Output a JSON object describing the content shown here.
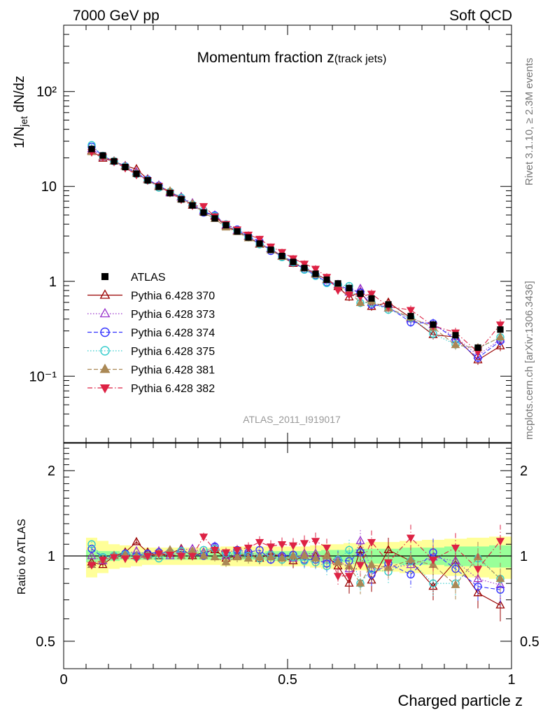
{
  "header": {
    "left": "7000 GeV pp",
    "right": "Soft QCD"
  },
  "title_main": "Momentum fraction ",
  "title_var": "z",
  "title_sub": "(track jets)",
  "analysis_label": "ATLAS_2011_I919017",
  "side_top": "Rivet 3.1.10, ≥ 2.3M events",
  "side_bottom": "mcplots.cern.ch [arXiv:1306.3436]",
  "y_label_main": {
    "pre": "1/N",
    "sub": "jet",
    "post": " dN/dz"
  },
  "y_label_ratio": "Ratio to ATLAS",
  "x_label": "Charged particle z",
  "colors": {
    "data": "#000000",
    "band_outer": "#ffff99",
    "band_inner": "#99ff99"
  },
  "chart_data": [
    {
      "type": "line",
      "panel": "main",
      "yscale": "log",
      "ylim": [
        0.02,
        500
      ],
      "xlim": [
        0,
        1
      ],
      "ytick_labels": [
        "10⁻¹",
        "1",
        "10",
        "10²"
      ],
      "yticks": [
        0.1,
        1,
        10,
        100
      ],
      "xticks": [
        0,
        0.5,
        1
      ],
      "xtick_labels": [
        "0",
        "0.5",
        "1"
      ],
      "legend_position": "lower-left",
      "x": [
        0.0625,
        0.0875,
        0.1125,
        0.1375,
        0.1625,
        0.1875,
        0.2125,
        0.2375,
        0.2625,
        0.2875,
        0.3125,
        0.3375,
        0.3625,
        0.3875,
        0.4125,
        0.4375,
        0.4625,
        0.4875,
        0.5125,
        0.5375,
        0.5625,
        0.5875,
        0.6125,
        0.6375,
        0.6625,
        0.6875,
        0.725,
        0.775,
        0.825,
        0.875,
        0.925,
        0.975
      ],
      "data_points": [
        24.8,
        21.2,
        18.4,
        16.0,
        13.6,
        11.6,
        9.9,
        8.5,
        7.3,
        6.3,
        5.3,
        4.6,
        3.9,
        3.35,
        2.9,
        2.5,
        2.15,
        1.85,
        1.6,
        1.38,
        1.2,
        1.04,
        0.95,
        0.85,
        0.74,
        0.66,
        0.57,
        0.43,
        0.35,
        0.27,
        0.2,
        0.31
      ],
      "series": [
        {
          "name": "ATLAS",
          "color": "#000000",
          "marker": "square-filled",
          "dash": "none"
        },
        {
          "name": "Pythia 6.428 370",
          "color": "#990000",
          "marker": "triangle-up-open",
          "dash": "solid",
          "ratio": [
            0.95,
            0.93,
            1.0,
            1.03,
            1.12,
            1.03,
            1.0,
            1.02,
            1.06,
            1.0,
            1.03,
            1.05,
            0.98,
            1.0,
            1.02,
            0.98,
            1.02,
            0.99,
            0.96,
            1.0,
            1.0,
            1.0,
            0.92,
            0.8,
            1.05,
            0.82,
            1.05,
            0.96,
            0.78,
            0.96,
            0.74,
            0.67
          ]
        },
        {
          "name": "Pythia 6.428 373",
          "color": "#9933cc",
          "marker": "triangle-up-open",
          "dash": "dotted",
          "ratio": [
            1.0,
            0.96,
            1.0,
            1.02,
            1.04,
            1.01,
            1.04,
            1.0,
            1.05,
            1.06,
            1.03,
            1.08,
            1.0,
            1.02,
            1.03,
            1.0,
            1.03,
            1.0,
            0.98,
            1.02,
            1.02,
            0.98,
            0.97,
            0.9,
            1.13,
            0.9,
            0.91,
            0.93,
            0.99,
            0.96,
            0.83,
            0.79
          ]
        },
        {
          "name": "Pythia 6.428 374",
          "color": "#3333ff",
          "marker": "circle-open",
          "dash": "dashed",
          "ratio": [
            1.06,
            0.99,
            1.0,
            1.02,
            1.0,
            1.02,
            1.03,
            1.03,
            1.04,
            1.02,
            1.0,
            1.08,
            1.02,
            1.05,
            1.03,
            1.05,
            0.97,
            1.0,
            1.01,
            0.97,
            0.97,
            0.94,
            0.97,
            0.96,
            1.03,
            0.86,
            0.94,
            0.86,
            1.03,
            0.9,
            0.78,
            0.76
          ]
        },
        {
          "name": "Pythia 6.428 375",
          "color": "#33cccc",
          "marker": "circle-open",
          "dash": "dotted",
          "ratio": [
            1.1,
            0.99,
            1.0,
            1.01,
            0.99,
            1.0,
            0.98,
            1.03,
            1.04,
            1.02,
            1.05,
            1.06,
            1.02,
            1.03,
            1.0,
            0.98,
            1.01,
            0.97,
            0.99,
            0.96,
            0.95,
            0.92,
            0.97,
            1.05,
            0.8,
            0.9,
            0.88,
            0.96,
            0.8,
            0.8,
            0.98,
            0.83
          ]
        },
        {
          "name": "Pythia 6.428 381",
          "color": "#aa8855",
          "marker": "triangle-up-filled",
          "dash": "dashed",
          "ratio": [
            0.93,
            0.97,
            1.0,
            1.01,
            1.0,
            1.0,
            1.02,
            1.05,
            1.0,
            1.04,
            1.0,
            0.99,
            0.95,
            0.99,
            0.98,
            0.99,
            0.99,
            0.98,
            1.0,
            1.0,
            0.98,
            1.0,
            0.95,
            0.92,
            0.8,
            0.93,
            0.91,
            0.97,
            0.93,
            0.79,
            0.99,
            0.83
          ]
        },
        {
          "name": "Pythia 6.428 382",
          "color": "#dd2244",
          "marker": "triangle-down-filled",
          "dash": "dashdot",
          "ratio": [
            0.93,
            0.97,
            0.99,
            0.98,
            0.98,
            1.0,
            1.02,
            1.01,
            1.0,
            1.0,
            1.17,
            1.05,
            1.03,
            1.05,
            1.07,
            1.12,
            1.08,
            1.1,
            1.09,
            1.11,
            1.13,
            1.07,
            0.85,
            0.85,
            0.93,
            1.12,
            0.95,
            1.16,
            0.97,
            1.07,
            0.9,
            1.13
          ]
        }
      ]
    },
    {
      "type": "line",
      "panel": "ratio",
      "yscale": "log",
      "ylim": [
        0.4,
        2.5
      ],
      "yticks": [
        0.5,
        1,
        2
      ],
      "ytick_labels": [
        "0.5",
        "1",
        "2"
      ],
      "xlim": [
        0,
        1
      ],
      "band_inner": [
        0.05,
        0.04,
        0.04,
        0.03,
        0.03,
        0.03,
        0.03,
        0.03,
        0.03,
        0.03,
        0.03,
        0.03,
        0.03,
        0.03,
        0.03,
        0.03,
        0.04,
        0.04,
        0.04,
        0.04,
        0.04,
        0.05,
        0.05,
        0.05,
        0.06,
        0.06,
        0.06,
        0.07,
        0.07,
        0.08,
        0.08,
        0.09
      ],
      "band_outer": [
        0.16,
        0.13,
        0.1,
        0.09,
        0.08,
        0.07,
        0.07,
        0.07,
        0.07,
        0.07,
        0.07,
        0.07,
        0.08,
        0.08,
        0.08,
        0.08,
        0.08,
        0.08,
        0.08,
        0.08,
        0.09,
        0.1,
        0.1,
        0.11,
        0.11,
        0.12,
        0.12,
        0.13,
        0.14,
        0.15,
        0.16,
        0.17
      ]
    }
  ]
}
